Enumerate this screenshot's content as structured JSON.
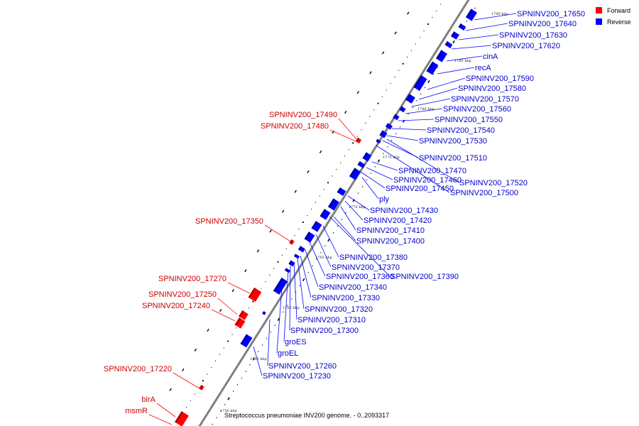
{
  "genome_title": "Streptococcus pneumoniae INV200 genome. - 0..2093317",
  "legend": {
    "forward_label": "Forward",
    "reverse_label": "Reverse",
    "forward_color": "#ff0000",
    "reverse_color": "#0000ff",
    "label_forward_color": "#cc0000",
    "label_reverse_color": "#0000cc"
  },
  "tick_labels": [
    "1755 kbp",
    "1760 kbp",
    "1765 kbp",
    "1770 kbp",
    "1775 kbp",
    "1780 kbp",
    "1785 kbp",
    "1790 kbp",
    "1750 kbp"
  ],
  "reverse_labels": [
    "SPNINV200_17650",
    "SPNINV200_17640",
    "SPNINV200_17630",
    "SPNINV200_17620",
    "cinA",
    "recA",
    "SPNINV200_17590",
    "SPNINV200_17580",
    "SPNINV200_17570",
    "SPNINV200_17560",
    "SPNINV200_17550",
    "SPNINV200_17540",
    "SPNINV200_17530",
    "SPNINV200_17510",
    "SPNINV200_17470",
    "SPNINV200_17460",
    "SPNINV200_17520",
    "SPNINV200_17450",
    "SPNINV200_17500",
    "ply",
    "SPNINV200_17430",
    "SPNINV200_17420",
    "SPNINV200_17410",
    "SPNINV200_17400",
    "SPNINV200_17380",
    "SPNINV200_17370",
    "SPNINV200_17360",
    "SPNINV200_17390",
    "SPNINV200_17340",
    "SPNINV200_17330",
    "SPNINV200_17320",
    "SPNINV200_17310",
    "SPNINV200_17300",
    "groES",
    "groEL",
    "SPNINV200_17260",
    "SPNINV200_17230"
  ],
  "forward_labels": [
    "SPNINV200_17490",
    "SPNINV200_17480",
    "SPNINV200_17350",
    "SPNINV200_17270",
    "SPNINV200_17250",
    "SPNINV200_17240",
    "SPNINV200_17220",
    "birA",
    "msmR"
  ]
}
